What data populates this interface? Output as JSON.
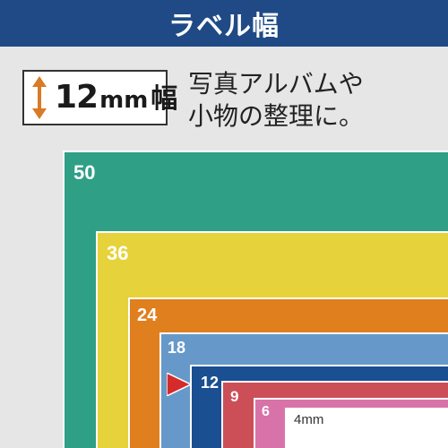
{
  "header": {
    "title": "ラベル幅"
  },
  "badge": {
    "number": "12",
    "unit": "mm",
    "kanji": "幅"
  },
  "tagline": {
    "line1": "写真アルバムや",
    "line2": "小物の整理に。"
  },
  "tapes": [
    {
      "label": "50",
      "color": "#2f9f86"
    },
    {
      "label": "36",
      "color": "#e6d23a"
    },
    {
      "label": "24",
      "color": "#e07f1e"
    },
    {
      "label": "18",
      "color": "#6699c9"
    },
    {
      "label": "12",
      "color": "#1a4f92"
    },
    {
      "label": "9",
      "color": "#cc4f58"
    },
    {
      "label": "6",
      "color": "#d873a9"
    },
    {
      "label": "4mm",
      "color": "#ffffff"
    }
  ],
  "highlight": {
    "label": "12",
    "pointer_color": "#d62b2b",
    "arrow_color": "#d97a25"
  }
}
